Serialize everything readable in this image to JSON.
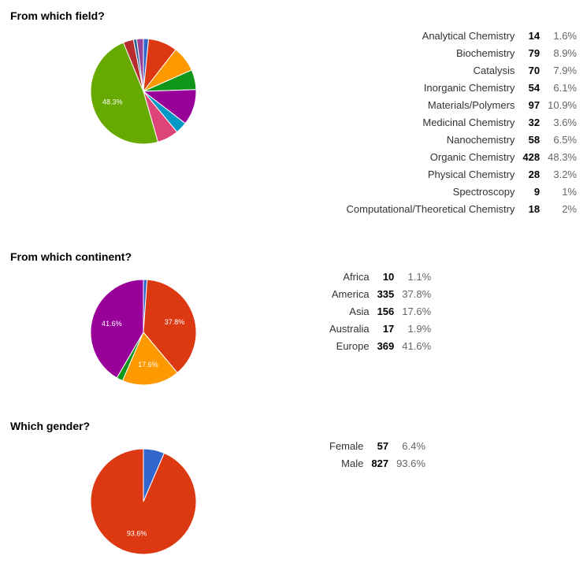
{
  "chart_data": [
    {
      "type": "pie",
      "title": "From which field?",
      "slice_labels_shown": [
        "Organic Chemistry"
      ],
      "rows": [
        {
          "label": "Analytical Chemistry",
          "count": "14",
          "percent": "1.6%",
          "value": 14,
          "share": 1.6,
          "color": "#3366cc"
        },
        {
          "label": "Biochemistry",
          "count": "79",
          "percent": "8.9%",
          "value": 79,
          "share": 8.9,
          "color": "#dc3912"
        },
        {
          "label": "Catalysis",
          "count": "70",
          "percent": "7.9%",
          "value": 70,
          "share": 7.9,
          "color": "#ff9900"
        },
        {
          "label": "Inorganic Chemistry",
          "count": "54",
          "percent": "6.1%",
          "value": 54,
          "share": 6.1,
          "color": "#109618"
        },
        {
          "label": "Materials/Polymers",
          "count": "97",
          "percent": "10.9%",
          "value": 97,
          "share": 10.9,
          "color": "#990099"
        },
        {
          "label": "Medicinal Chemistry",
          "count": "32",
          "percent": "3.6%",
          "value": 32,
          "share": 3.6,
          "color": "#0099c6"
        },
        {
          "label": "Nanochemistry",
          "count": "58",
          "percent": "6.5%",
          "value": 58,
          "share": 6.5,
          "color": "#dd4477"
        },
        {
          "label": "Organic Chemistry",
          "count": "428",
          "percent": "48.3%",
          "value": 428,
          "share": 48.3,
          "color": "#66aa00"
        },
        {
          "label": "Physical Chemistry",
          "count": "28",
          "percent": "3.2%",
          "value": 28,
          "share": 3.2,
          "color": "#b82e2e"
        },
        {
          "label": "Spectroscopy",
          "count": "9",
          "percent": "1%",
          "value": 9,
          "share": 1.0,
          "color": "#316395"
        },
        {
          "label": "Computational/Theoretical Chemistry",
          "count": "18",
          "percent": "2%",
          "value": 18,
          "share": 2.0,
          "color": "#994499"
        }
      ]
    },
    {
      "type": "pie",
      "title": "From which continent?",
      "slice_labels_shown": [
        "America",
        "Asia",
        "Europe"
      ],
      "rows": [
        {
          "label": "Africa",
          "count": "10",
          "percent": "1.1%",
          "value": 10,
          "share": 1.1,
          "color": "#3366cc"
        },
        {
          "label": "America",
          "count": "335",
          "percent": "37.8%",
          "value": 335,
          "share": 37.8,
          "color": "#dc3912"
        },
        {
          "label": "Asia",
          "count": "156",
          "percent": "17.6%",
          "value": 156,
          "share": 17.6,
          "color": "#ff9900"
        },
        {
          "label": "Australia",
          "count": "17",
          "percent": "1.9%",
          "value": 17,
          "share": 1.9,
          "color": "#109618"
        },
        {
          "label": "Europe",
          "count": "369",
          "percent": "41.6%",
          "value": 369,
          "share": 41.6,
          "color": "#990099"
        }
      ]
    },
    {
      "type": "pie",
      "title": "Which gender?",
      "slice_labels_shown": [
        "Male"
      ],
      "rows": [
        {
          "label": "Female",
          "count": "57",
          "percent": "6.4%",
          "value": 57,
          "share": 6.4,
          "color": "#3366cc"
        },
        {
          "label": "Male",
          "count": "827",
          "percent": "93.6%",
          "value": 827,
          "share": 93.6,
          "color": "#dc3912"
        }
      ]
    }
  ]
}
